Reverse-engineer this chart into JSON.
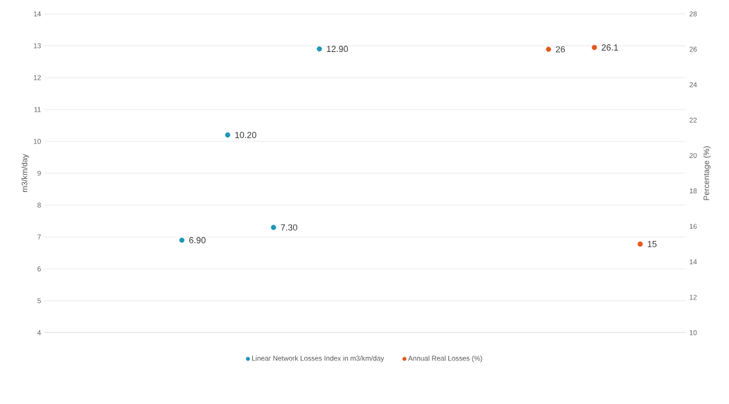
{
  "chart_data": {
    "type": "scatter",
    "categories": [
      null,
      null,
      null,
      null,
      null,
      null,
      null,
      null,
      null,
      null,
      null,
      null,
      null,
      null,
      null
    ],
    "ylabel": "m3/km/day",
    "y2label": "Percentage (%)",
    "ylim": [
      4,
      14
    ],
    "yticks": [
      4,
      5,
      6,
      7,
      8,
      9,
      10,
      11,
      12,
      13,
      14
    ],
    "y2lim": [
      10,
      28
    ],
    "y2ticks": [
      10,
      12,
      14,
      16,
      18,
      20,
      22,
      24,
      26,
      28
    ],
    "grid": "y",
    "legend": "bottom",
    "marker": "circle",
    "series": [
      {
        "name": "Linear Network Losses Index in m3/km/day",
        "color": "#1f96b6",
        "values": [
          null,
          null,
          null,
          6.9,
          10.2,
          7.3,
          12.9,
          null,
          null,
          null,
          null,
          null,
          null,
          null,
          null
        ],
        "value_labels": [
          null,
          null,
          null,
          "6.90",
          "10.20",
          "7.30",
          "12.90",
          null,
          null,
          null,
          null,
          null,
          null,
          null,
          null
        ]
      },
      {
        "name": "Annual Real Losses (%)",
        "color": "#e4581b",
        "axis": "y2",
        "values": [
          null,
          null,
          null,
          null,
          null,
          null,
          null,
          null,
          null,
          null,
          null,
          26,
          26.1,
          15,
          null
        ],
        "value_labels": [
          null,
          null,
          null,
          null,
          null,
          null,
          null,
          null,
          null,
          null,
          null,
          "26",
          "26.1",
          "15",
          null
        ]
      }
    ]
  }
}
